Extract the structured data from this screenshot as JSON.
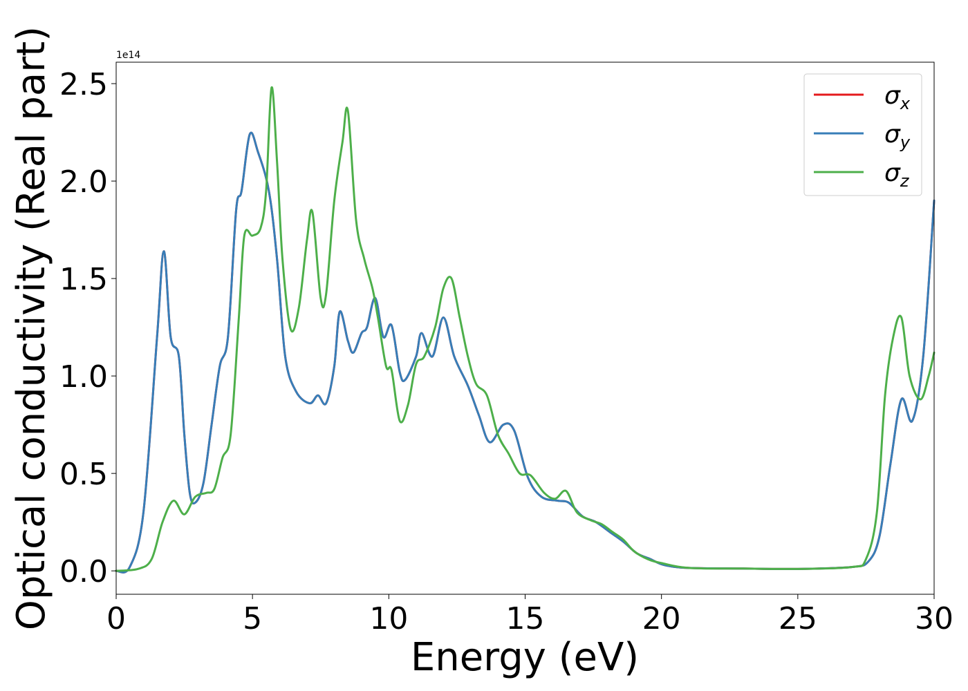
{
  "chart_data": {
    "type": "line",
    "xlabel": "Energy (eV)",
    "ylabel": "Optical conductivity (Real part)",
    "offset_text": "1e14",
    "xlim": [
      0,
      30
    ],
    "ylim": [
      -0.12,
      2.61
    ],
    "x_ticks": [
      0,
      5,
      10,
      15,
      20,
      25,
      30
    ],
    "y_ticks": [
      0.0,
      0.5,
      1.0,
      1.5,
      2.0,
      2.5
    ],
    "x_tick_labels": [
      "0",
      "5",
      "10",
      "15",
      "20",
      "25",
      "30"
    ],
    "y_tick_labels": [
      "0.0",
      "0.5",
      "1.0",
      "1.5",
      "2.0",
      "2.5"
    ],
    "grid": false,
    "legend_position": "top-right",
    "series": [
      {
        "name": "σx",
        "base": "σ",
        "sub": "x",
        "color": "#e41a1c",
        "points": [
          [
            0,
            0
          ],
          [
            0.5,
            0.02
          ],
          [
            1,
            0.3
          ],
          [
            1.5,
            1.2
          ],
          [
            1.75,
            1.64
          ],
          [
            2,
            1.2
          ],
          [
            2.3,
            1.1
          ],
          [
            2.5,
            0.7
          ],
          [
            2.7,
            0.4
          ],
          [
            2.9,
            0.35
          ],
          [
            3.2,
            0.45
          ],
          [
            3.5,
            0.75
          ],
          [
            3.8,
            1.05
          ],
          [
            4.1,
            1.2
          ],
          [
            4.4,
            1.85
          ],
          [
            4.6,
            1.95
          ],
          [
            4.9,
            2.24
          ],
          [
            5.2,
            2.15
          ],
          [
            5.6,
            1.95
          ],
          [
            5.9,
            1.6
          ],
          [
            6.2,
            1.1
          ],
          [
            6.6,
            0.92
          ],
          [
            7.1,
            0.86
          ],
          [
            7.4,
            0.9
          ],
          [
            7.7,
            0.86
          ],
          [
            8,
            1.05
          ],
          [
            8.2,
            1.33
          ],
          [
            8.5,
            1.18
          ],
          [
            8.7,
            1.12
          ],
          [
            9.0,
            1.22
          ],
          [
            9.2,
            1.25
          ],
          [
            9.5,
            1.4
          ],
          [
            9.8,
            1.2
          ],
          [
            10.1,
            1.26
          ],
          [
            10.4,
            1.02
          ],
          [
            10.6,
            0.98
          ],
          [
            11.0,
            1.1
          ],
          [
            11.2,
            1.22
          ],
          [
            11.6,
            1.1
          ],
          [
            12.0,
            1.3
          ],
          [
            12.4,
            1.1
          ],
          [
            12.9,
            0.95
          ],
          [
            13.3,
            0.8
          ],
          [
            13.7,
            0.66
          ],
          [
            14.2,
            0.75
          ],
          [
            14.6,
            0.72
          ],
          [
            15.1,
            0.48
          ],
          [
            15.6,
            0.38
          ],
          [
            16.2,
            0.36
          ],
          [
            16.6,
            0.35
          ],
          [
            17.1,
            0.28
          ],
          [
            17.6,
            0.25
          ],
          [
            18.1,
            0.2
          ],
          [
            18.6,
            0.15
          ],
          [
            19.1,
            0.09
          ],
          [
            19.6,
            0.06
          ],
          [
            20.1,
            0.03
          ],
          [
            21,
            0.015
          ],
          [
            23,
            0.012
          ],
          [
            25,
            0.01
          ],
          [
            27,
            0.02
          ],
          [
            27.6,
            0.05
          ],
          [
            28.0,
            0.18
          ],
          [
            28.4,
            0.55
          ],
          [
            28.8,
            0.88
          ],
          [
            29.2,
            0.77
          ],
          [
            29.6,
            1.1
          ],
          [
            30,
            1.9
          ]
        ]
      },
      {
        "name": "σy",
        "base": "σ",
        "sub": "y",
        "color": "#377eb8",
        "points": [
          [
            0,
            0
          ],
          [
            0.5,
            0.02
          ],
          [
            1,
            0.3
          ],
          [
            1.5,
            1.2
          ],
          [
            1.75,
            1.64
          ],
          [
            2,
            1.2
          ],
          [
            2.3,
            1.1
          ],
          [
            2.5,
            0.7
          ],
          [
            2.7,
            0.4
          ],
          [
            2.9,
            0.35
          ],
          [
            3.2,
            0.45
          ],
          [
            3.5,
            0.75
          ],
          [
            3.8,
            1.05
          ],
          [
            4.1,
            1.2
          ],
          [
            4.4,
            1.85
          ],
          [
            4.6,
            1.95
          ],
          [
            4.9,
            2.24
          ],
          [
            5.2,
            2.15
          ],
          [
            5.6,
            1.95
          ],
          [
            5.9,
            1.6
          ],
          [
            6.2,
            1.1
          ],
          [
            6.6,
            0.92
          ],
          [
            7.1,
            0.86
          ],
          [
            7.4,
            0.9
          ],
          [
            7.7,
            0.86
          ],
          [
            8,
            1.05
          ],
          [
            8.2,
            1.33
          ],
          [
            8.5,
            1.18
          ],
          [
            8.7,
            1.12
          ],
          [
            9.0,
            1.22
          ],
          [
            9.2,
            1.25
          ],
          [
            9.5,
            1.4
          ],
          [
            9.8,
            1.2
          ],
          [
            10.1,
            1.26
          ],
          [
            10.4,
            1.02
          ],
          [
            10.6,
            0.98
          ],
          [
            11.0,
            1.1
          ],
          [
            11.2,
            1.22
          ],
          [
            11.6,
            1.1
          ],
          [
            12.0,
            1.3
          ],
          [
            12.4,
            1.1
          ],
          [
            12.9,
            0.95
          ],
          [
            13.3,
            0.8
          ],
          [
            13.7,
            0.66
          ],
          [
            14.2,
            0.75
          ],
          [
            14.6,
            0.72
          ],
          [
            15.1,
            0.48
          ],
          [
            15.6,
            0.38
          ],
          [
            16.2,
            0.36
          ],
          [
            16.6,
            0.35
          ],
          [
            17.1,
            0.28
          ],
          [
            17.6,
            0.25
          ],
          [
            18.1,
            0.2
          ],
          [
            18.6,
            0.15
          ],
          [
            19.1,
            0.09
          ],
          [
            19.6,
            0.06
          ],
          [
            20.1,
            0.03
          ],
          [
            21,
            0.015
          ],
          [
            23,
            0.012
          ],
          [
            25,
            0.01
          ],
          [
            27,
            0.02
          ],
          [
            27.6,
            0.05
          ],
          [
            28.0,
            0.18
          ],
          [
            28.4,
            0.55
          ],
          [
            28.8,
            0.88
          ],
          [
            29.2,
            0.77
          ],
          [
            29.6,
            1.1
          ],
          [
            30,
            1.9
          ]
        ]
      },
      {
        "name": "σz",
        "base": "σ",
        "sub": "z",
        "color": "#4daf4a",
        "points": [
          [
            0,
            0
          ],
          [
            0.8,
            0.01
          ],
          [
            1.3,
            0.06
          ],
          [
            1.7,
            0.25
          ],
          [
            2.1,
            0.36
          ],
          [
            2.5,
            0.29
          ],
          [
            2.9,
            0.38
          ],
          [
            3.3,
            0.4
          ],
          [
            3.6,
            0.42
          ],
          [
            3.9,
            0.58
          ],
          [
            4.2,
            0.7
          ],
          [
            4.5,
            1.3
          ],
          [
            4.7,
            1.72
          ],
          [
            5.0,
            1.72
          ],
          [
            5.3,
            1.76
          ],
          [
            5.5,
            1.95
          ],
          [
            5.7,
            2.48
          ],
          [
            5.9,
            2.1
          ],
          [
            6.1,
            1.6
          ],
          [
            6.4,
            1.24
          ],
          [
            6.7,
            1.35
          ],
          [
            7.0,
            1.7
          ],
          [
            7.2,
            1.84
          ],
          [
            7.5,
            1.4
          ],
          [
            7.7,
            1.42
          ],
          [
            8.0,
            1.9
          ],
          [
            8.3,
            2.2
          ],
          [
            8.5,
            2.36
          ],
          [
            8.8,
            1.8
          ],
          [
            9.1,
            1.6
          ],
          [
            9.4,
            1.45
          ],
          [
            9.6,
            1.3
          ],
          [
            9.9,
            1.05
          ],
          [
            10.1,
            1.03
          ],
          [
            10.4,
            0.77
          ],
          [
            10.7,
            0.85
          ],
          [
            11.0,
            1.06
          ],
          [
            11.3,
            1.1
          ],
          [
            11.7,
            1.25
          ],
          [
            12.0,
            1.45
          ],
          [
            12.3,
            1.5
          ],
          [
            12.6,
            1.3
          ],
          [
            12.9,
            1.1
          ],
          [
            13.2,
            0.96
          ],
          [
            13.6,
            0.9
          ],
          [
            14.0,
            0.7
          ],
          [
            14.4,
            0.6
          ],
          [
            14.8,
            0.5
          ],
          [
            15.2,
            0.49
          ],
          [
            15.7,
            0.4
          ],
          [
            16.1,
            0.37
          ],
          [
            16.5,
            0.41
          ],
          [
            16.9,
            0.3
          ],
          [
            17.4,
            0.26
          ],
          [
            17.8,
            0.24
          ],
          [
            18.2,
            0.2
          ],
          [
            18.6,
            0.16
          ],
          [
            19.0,
            0.1
          ],
          [
            19.5,
            0.06
          ],
          [
            20.0,
            0.04
          ],
          [
            21,
            0.015
          ],
          [
            23,
            0.012
          ],
          [
            25,
            0.01
          ],
          [
            27,
            0.02
          ],
          [
            27.5,
            0.06
          ],
          [
            27.9,
            0.3
          ],
          [
            28.2,
            0.9
          ],
          [
            28.5,
            1.2
          ],
          [
            28.8,
            1.3
          ],
          [
            29.1,
            1.0
          ],
          [
            29.5,
            0.88
          ],
          [
            29.8,
            1.0
          ],
          [
            30,
            1.12
          ]
        ]
      }
    ]
  }
}
